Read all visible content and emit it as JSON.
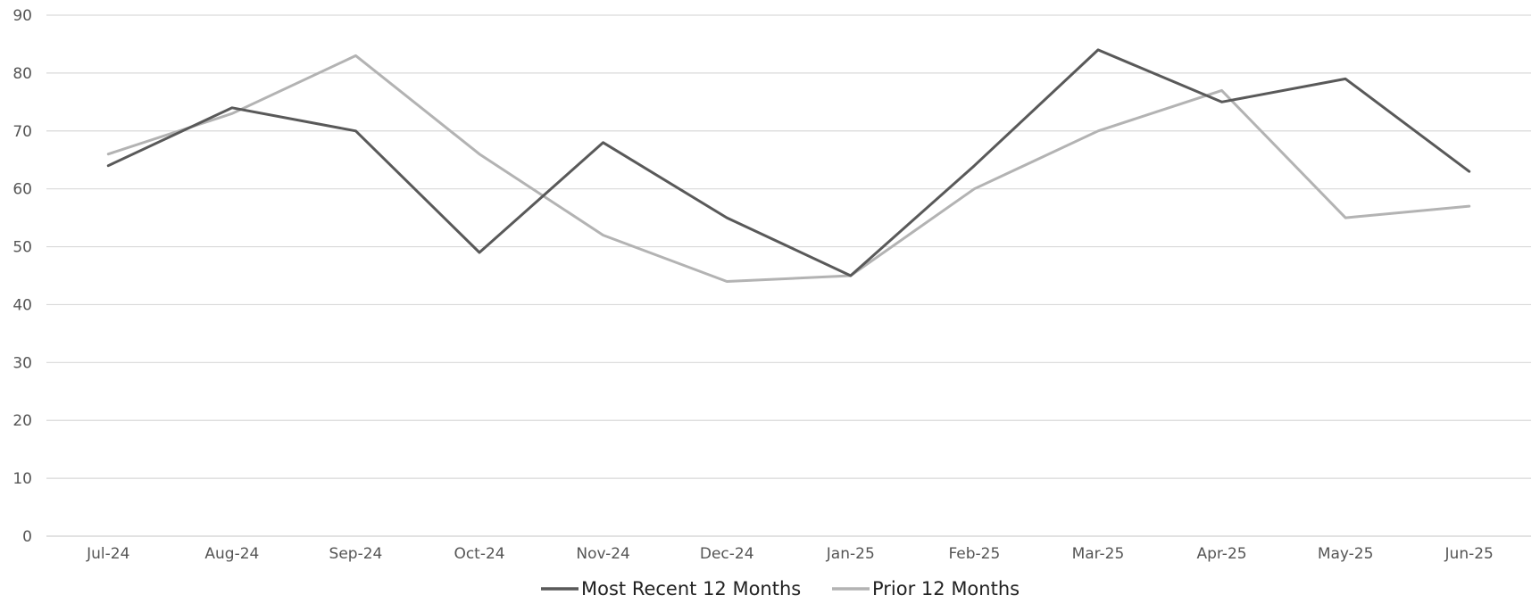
{
  "chart_data": {
    "type": "line",
    "title": "",
    "xlabel": "",
    "ylabel": "",
    "categories": [
      "Jul-24",
      "Aug-24",
      "Sep-24",
      "Oct-24",
      "Nov-24",
      "Dec-24",
      "Jan-25",
      "Feb-25",
      "Mar-25",
      "Apr-25",
      "May-25",
      "Jun-25"
    ],
    "ylim": [
      0,
      90
    ],
    "yticks": [
      0,
      10,
      20,
      30,
      40,
      50,
      60,
      70,
      80,
      90
    ],
    "grid": true,
    "legend_position": "bottom-center",
    "series": [
      {
        "name": "Most Recent 12 Months",
        "color": "#595959",
        "values": [
          64,
          74,
          70,
          49,
          68,
          55,
          45,
          64,
          84,
          75,
          79,
          63
        ]
      },
      {
        "name": "Prior 12 Months",
        "color": "#b3b3b3",
        "values": [
          66,
          73,
          83,
          66,
          52,
          44,
          45,
          60,
          70,
          77,
          55,
          57
        ]
      }
    ]
  }
}
